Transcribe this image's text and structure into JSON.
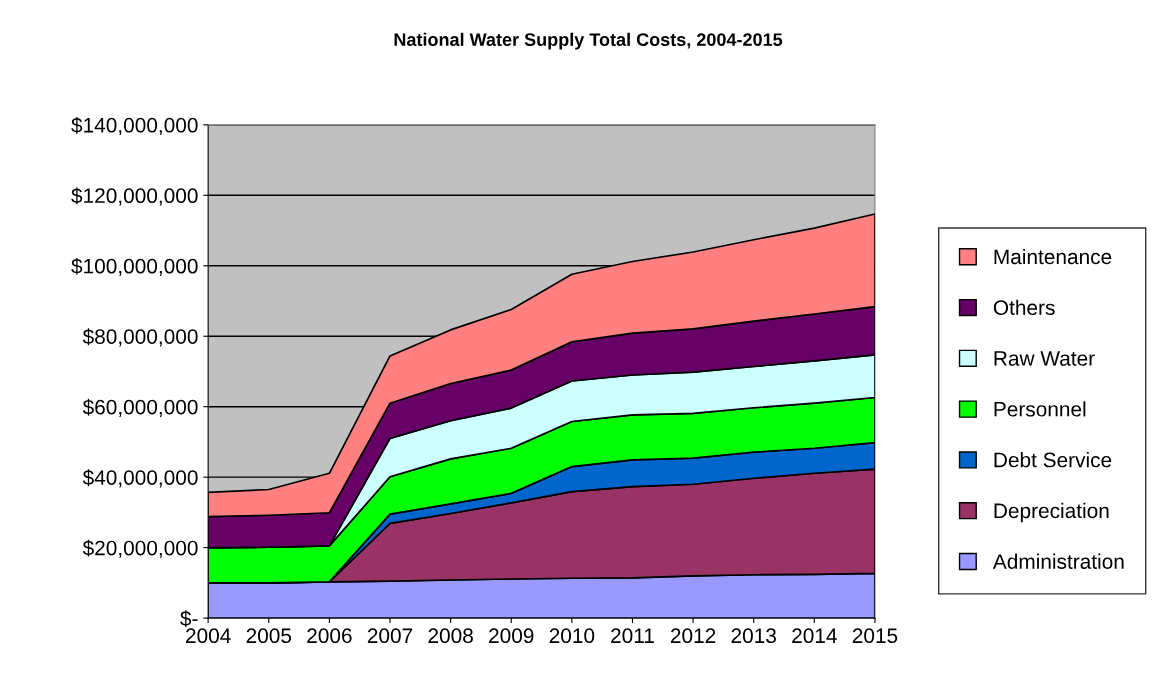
{
  "chart_data": {
    "type": "area",
    "title": "National Water Supply Total Costs, 2004-2015",
    "stacked": true,
    "categories": [
      "2004",
      "2005",
      "2006",
      "2007",
      "2008",
      "2009",
      "2010",
      "2011",
      "2012",
      "2013",
      "2014",
      "2015"
    ],
    "series": [
      {
        "name": "Administration",
        "color": "#9999ff",
        "values": [
          10000000,
          10000000,
          10300000,
          10500000,
          10800000,
          11100000,
          11300000,
          11400000,
          12000000,
          12300000,
          12400000,
          12700000
        ]
      },
      {
        "name": "Depreciation",
        "color": "#993366",
        "values": [
          0,
          0,
          0,
          16400000,
          18900000,
          21600000,
          24600000,
          25900000,
          26000000,
          27400000,
          28700000,
          29600000
        ]
      },
      {
        "name": "Debt Service",
        "color": "#0066cc",
        "values": [
          0,
          0,
          0,
          2600000,
          2700000,
          2700000,
          7100000,
          7600000,
          7400000,
          7400000,
          7100000,
          7500000
        ]
      },
      {
        "name": "Personnel",
        "color": "#00ff00",
        "values": [
          10000000,
          10100000,
          10200000,
          10600000,
          12800000,
          12800000,
          12800000,
          12800000,
          12700000,
          12600000,
          12800000,
          12800000
        ]
      },
      {
        "name": "Raw Water",
        "color": "#ccffff",
        "values": [
          0,
          0,
          0,
          10900000,
          10800000,
          11400000,
          11500000,
          11300000,
          11700000,
          11700000,
          12000000,
          12100000
        ]
      },
      {
        "name": "Others",
        "color": "#660066",
        "values": [
          8800000,
          9100000,
          9400000,
          10000000,
          10600000,
          10800000,
          11100000,
          11900000,
          12300000,
          12900000,
          13300000,
          13700000
        ]
      },
      {
        "name": "Maintenance",
        "color": "#ff8080",
        "values": [
          6900000,
          7300000,
          11200000,
          13400000,
          15200000,
          17200000,
          19200000,
          20300000,
          21800000,
          23100000,
          24400000,
          26300000
        ]
      }
    ],
    "ylim": [
      0,
      140000000
    ],
    "yticks": [
      {
        "value": 0,
        "label": "$-"
      },
      {
        "value": 20000000,
        "label": "$20,000,000"
      },
      {
        "value": 40000000,
        "label": "$40,000,000"
      },
      {
        "value": 60000000,
        "label": "$60,000,000"
      },
      {
        "value": 80000000,
        "label": "$80,000,000"
      },
      {
        "value": 100000000,
        "label": "$100,000,000"
      },
      {
        "value": 120000000,
        "label": "$120,000,000"
      },
      {
        "value": 140000000,
        "label": "$140,000,000"
      }
    ],
    "grid": "y",
    "legend": "right"
  }
}
